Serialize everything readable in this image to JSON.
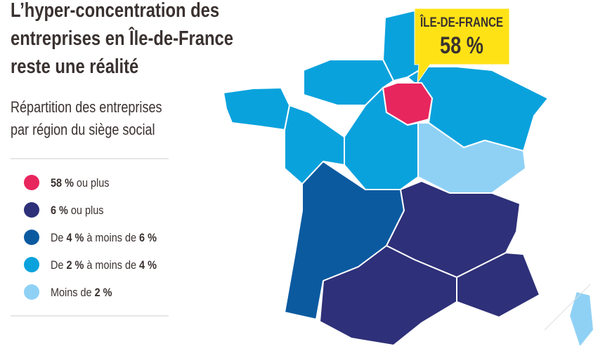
{
  "title": [
    "L’hyper-concentration des",
    "entreprises en Île-de-France",
    "reste une réalité"
  ],
  "subtitle": [
    "Répartition des entreprises",
    "par région du siège social"
  ],
  "legend": [
    {
      "color": "#e8265e",
      "parts": [
        {
          "text": "58 %",
          "bold": true
        },
        {
          "text": " ou plus",
          "bold": false
        }
      ]
    },
    {
      "color": "#2e3079",
      "parts": [
        {
          "text": "6 %",
          "bold": true
        },
        {
          "text": " ou plus",
          "bold": false
        }
      ]
    },
    {
      "color": "#0b5aa0",
      "parts": [
        {
          "text": "De ",
          "bold": false
        },
        {
          "text": "4 %",
          "bold": true
        },
        {
          "text": " à moins de ",
          "bold": false
        },
        {
          "text": "6 %",
          "bold": true
        }
      ]
    },
    {
      "color": "#0aa2dd",
      "parts": [
        {
          "text": "De ",
          "bold": false
        },
        {
          "text": "2 %",
          "bold": true
        },
        {
          "text": " à moins de ",
          "bold": false
        },
        {
          "text": "4 %",
          "bold": true
        }
      ]
    },
    {
      "color": "#8fd1f5",
      "parts": [
        {
          "text": "Moins de ",
          "bold": false
        },
        {
          "text": "2 %",
          "bold": true
        }
      ]
    }
  ],
  "callout": {
    "region": "ÎLE-DE-FRANCE",
    "value": "58 %"
  }
}
